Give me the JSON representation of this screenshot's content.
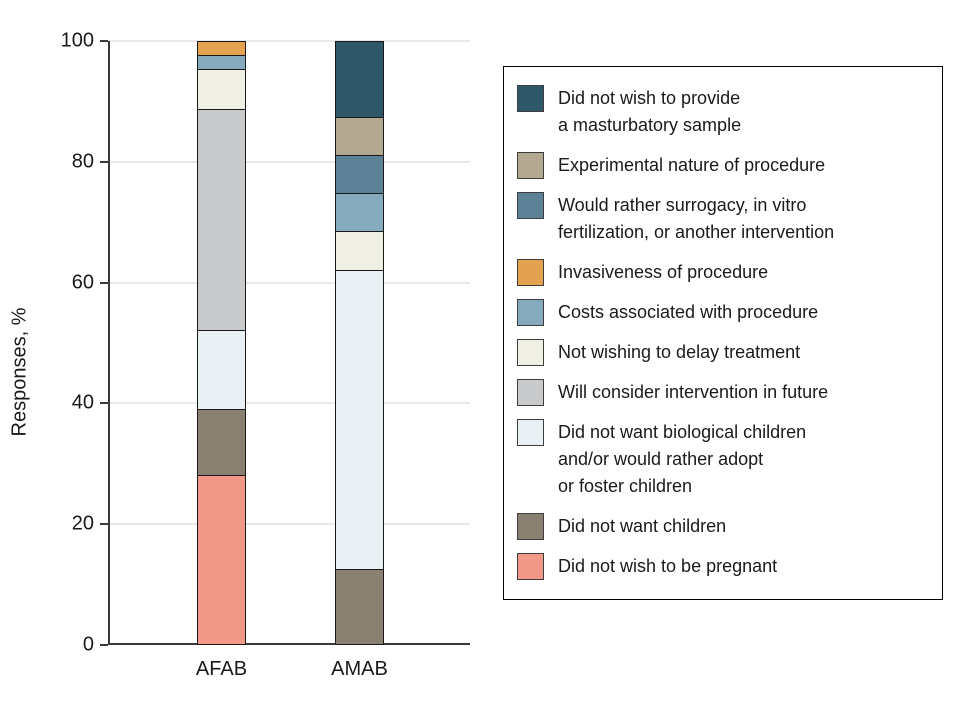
{
  "chart_data": {
    "type": "bar",
    "stacked": true,
    "title": "",
    "ylabel": "Responses, %",
    "xlabel": "",
    "ylim": [
      0,
      100
    ],
    "yticks": [
      0,
      20,
      40,
      60,
      80,
      100
    ],
    "grid": true,
    "legend_position": "right",
    "categories": [
      "AFAB",
      "AMAB"
    ],
    "series": [
      {
        "name": "Did not wish to provide a masturbatory sample",
        "legend_lines": [
          "Did not wish to provide",
          "a masturbatory sample"
        ],
        "color": "#2E5867",
        "values": [
          0,
          12.5
        ]
      },
      {
        "name": "Experimental nature of procedure",
        "legend_lines": [
          "Experimental nature of procedure"
        ],
        "color": "#B3A890",
        "values": [
          0,
          6.25
        ]
      },
      {
        "name": "Would rather surrogacy, in vitro fertilization, or another intervention",
        "legend_lines": [
          "Would rather surrogacy, in vitro",
          "fertilization, or another intervention"
        ],
        "color": "#5D8196",
        "values": [
          0,
          6.25
        ]
      },
      {
        "name": "Invasiveness of procedure",
        "legend_lines": [
          "Invasiveness of procedure"
        ],
        "color": "#E2A24F",
        "values": [
          2.2,
          0
        ]
      },
      {
        "name": "Costs associated with procedure",
        "legend_lines": [
          "Costs associated with procedure"
        ],
        "color": "#85A9BD",
        "values": [
          2.2,
          6.25
        ]
      },
      {
        "name": "Not wishing to delay treatment",
        "legend_lines": [
          "Not wishing to delay treatment"
        ],
        "color": "#F0EFE3",
        "values": [
          6.5,
          6.25
        ]
      },
      {
        "name": "Will consider intervention in future",
        "legend_lines": [
          "Will consider intervention in future"
        ],
        "color": "#C8CACC",
        "values": [
          37.0,
          0
        ]
      },
      {
        "name": "Did not want biological children and/or would rather adopt or foster children",
        "legend_lines": [
          "Did not want biological children",
          "and/or would rather adopt",
          "or foster children"
        ],
        "color": "#E8F0F4",
        "values": [
          13.0,
          50
        ]
      },
      {
        "name": "Did not want children",
        "legend_lines": [
          "Did not want children"
        ],
        "color": "#8A8071",
        "values": [
          10.9,
          12.5
        ]
      },
      {
        "name": "Did not wish to be pregnant",
        "legend_lines": [
          "Did not wish to be pregnant"
        ],
        "color": "#F29888",
        "values": [
          28.3,
          0
        ]
      }
    ]
  }
}
